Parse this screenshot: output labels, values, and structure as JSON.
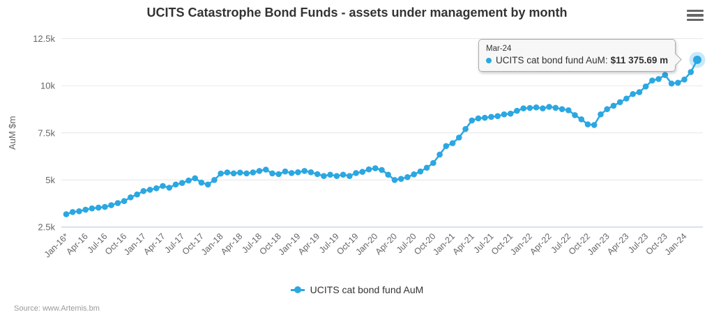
{
  "title": "UCITS Catastrophe Bond Funds - assets under management by month",
  "source_text": "Source: www.Artemis.bm",
  "legend": {
    "label": "UCITS cat bond fund AuM"
  },
  "tooltip": {
    "header": "Mar-24",
    "series_label": "UCITS cat bond fund AuM:",
    "value": "$11 375.69 m"
  },
  "colors": {
    "series": "#2BA7E2",
    "halo": "rgba(43,167,226,0.25)",
    "grid": "#e6e6e6",
    "axis_line": "#ccd6eb",
    "tick_text": "#666666",
    "title_text": "#333333",
    "source_text": "#9a9a9a",
    "tooltip_border": "#ababab"
  },
  "chart_data": {
    "type": "line",
    "title": "UCITS Catastrophe Bond Funds - assets under management by month",
    "xlabel": "",
    "ylabel": "AuM $m",
    "ylim": [
      2500,
      12500
    ],
    "ytick_values": [
      2500,
      5000,
      7500,
      10000,
      12500
    ],
    "ytick_labels": [
      "2.5k",
      "5k",
      "7.5k",
      "10k",
      "12.5k"
    ],
    "grid": "horizontal",
    "legend_position": "bottom",
    "x_start": "Jan-16",
    "x_end": "Mar-24",
    "x_frequency": "monthly",
    "xtick_every_n_months": 3,
    "xtick_labels": [
      "Jan-16*",
      "Apr-16",
      "Jul-16",
      "Oct-16",
      "Jan-17",
      "Apr-17",
      "Jul-17",
      "Oct-17",
      "Jan-18",
      "Apr-18",
      "Jul-18",
      "Oct-18",
      "Jan-19",
      "Apr-19",
      "Jul-19",
      "Oct-19",
      "Jan-20",
      "Apr-20",
      "Jul-20",
      "Oct-20",
      "Jan-21",
      "Apr-21",
      "Jul-21",
      "Oct-21",
      "Jan-22",
      "Apr-22",
      "Jul-22",
      "Oct-22",
      "Jan-23",
      "Apr-23",
      "Jul-23",
      "Oct-23",
      "Jan-24"
    ],
    "highlighted_point": {
      "x": "Mar-24",
      "value": 11375.69
    },
    "series": [
      {
        "name": "UCITS cat bond fund AuM",
        "values": [
          3180,
          3300,
          3340,
          3420,
          3490,
          3530,
          3570,
          3660,
          3770,
          3880,
          4080,
          4230,
          4410,
          4480,
          4560,
          4680,
          4590,
          4760,
          4840,
          4970,
          5090,
          4860,
          4760,
          5000,
          5340,
          5400,
          5350,
          5390,
          5350,
          5400,
          5480,
          5550,
          5350,
          5310,
          5450,
          5370,
          5410,
          5480,
          5410,
          5310,
          5210,
          5280,
          5210,
          5280,
          5210,
          5370,
          5430,
          5560,
          5620,
          5530,
          5280,
          5000,
          5060,
          5150,
          5300,
          5450,
          5650,
          5900,
          6350,
          6800,
          6950,
          7250,
          7700,
          8160,
          8270,
          8300,
          8350,
          8390,
          8480,
          8520,
          8670,
          8800,
          8820,
          8850,
          8800,
          8880,
          8830,
          8760,
          8700,
          8440,
          8220,
          7950,
          7920,
          8480,
          8760,
          8940,
          9130,
          9320,
          9560,
          9660,
          9960,
          10280,
          10360,
          10570,
          10120,
          10160,
          10330,
          10730,
          11375.69
        ]
      }
    ]
  }
}
